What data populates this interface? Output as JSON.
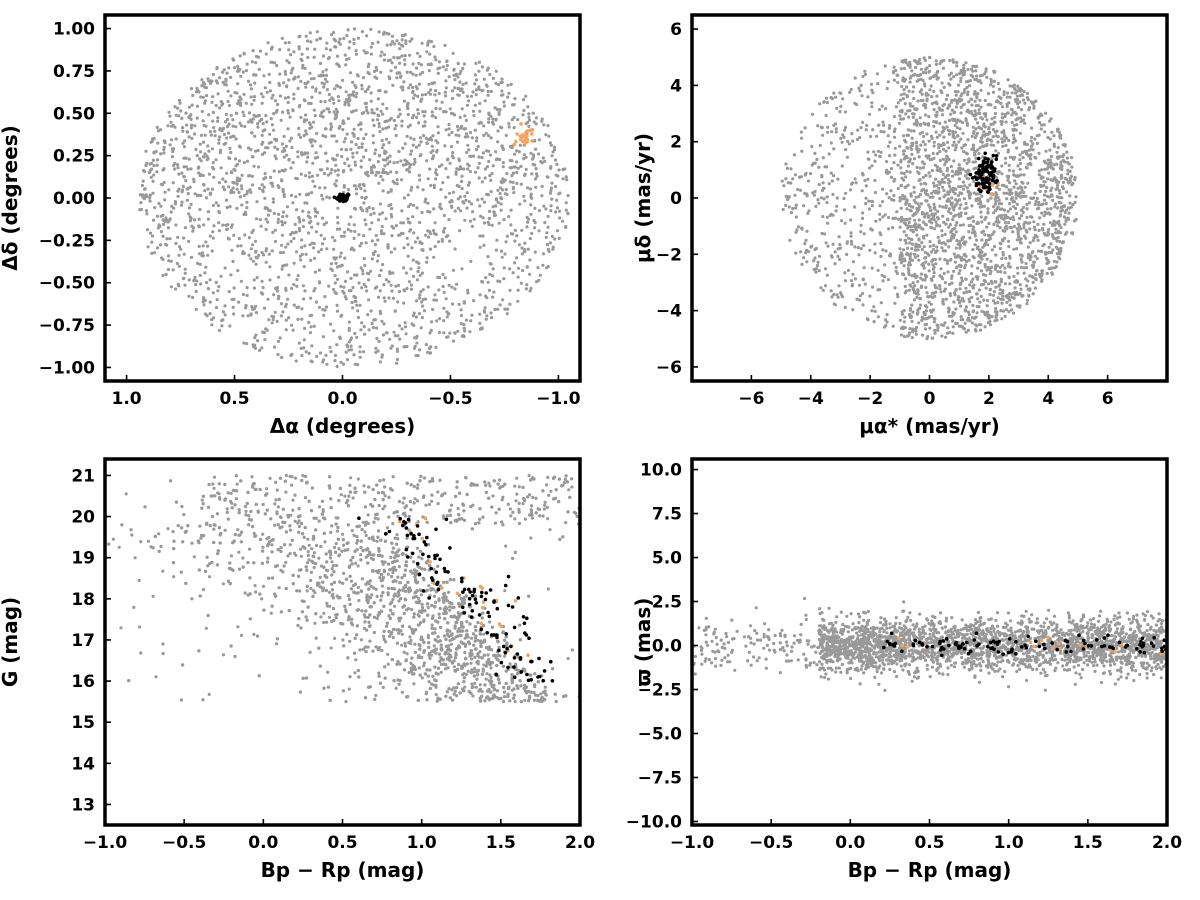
{
  "chart_data": [
    {
      "type": "scatter",
      "xlabel": "Δα (degrees)",
      "ylabel": "Δδ (degrees)",
      "xlim": [
        1.1,
        -1.1
      ],
      "ylim": [
        -1.08,
        1.08
      ],
      "x_inverted": true,
      "xticks": [
        1.0,
        0.5,
        0.0,
        -0.5,
        -1.0
      ],
      "xtick_labels": [
        "1.0",
        "0.5",
        "0.0",
        "−0.5",
        "−1.0"
      ],
      "yticks": [
        -1.0,
        -0.75,
        -0.5,
        -0.25,
        0.0,
        0.25,
        0.5,
        0.75,
        1.0
      ],
      "ytick_labels": [
        "−1.00",
        "−0.75",
        "−0.50",
        "−0.25",
        "0.00",
        "0.25",
        "0.50",
        "0.75",
        "1.00"
      ],
      "series": [
        {
          "color": "#999999",
          "description_shape": "disk",
          "cx": -0.05,
          "cy": 0.0,
          "rx": 1.0,
          "ry": 1.0,
          "density_bias": "upper",
          "approx_points": 2600
        },
        {
          "color": "#f4a460",
          "cx": -0.83,
          "cy": 0.36,
          "spread": 0.03,
          "approx_points": 25
        },
        {
          "color": "#000000",
          "cx": 0.0,
          "cy": 0.0,
          "spread": 0.015,
          "approx_points": 60
        }
      ]
    },
    {
      "type": "scatter",
      "xlabel": "μα* (mas/yr)",
      "ylabel": "μδ (mas/yr)",
      "xlim": [
        -8,
        8
      ],
      "ylim": [
        -6.5,
        6.5
      ],
      "xticks": [
        -6,
        -4,
        -2,
        0,
        2,
        4,
        6
      ],
      "xtick_labels": [
        "−6",
        "−4",
        "−2",
        "0",
        "2",
        "4",
        "6"
      ],
      "yticks": [
        -6,
        -4,
        -2,
        0,
        2,
        4,
        6
      ],
      "ytick_labels": [
        "−6",
        "−4",
        "−2",
        "0",
        "2",
        "4",
        "6"
      ],
      "series": [
        {
          "color": "#999999",
          "cx": 0.0,
          "cy": 0.0,
          "radius": 5.0,
          "density_bias": "right",
          "approx_points": 2600
        },
        {
          "color": "#f4a460",
          "cx": 1.9,
          "cy": 0.55,
          "spread": 0.2,
          "approx_points": 12
        },
        {
          "color": "#000000",
          "cx": 1.9,
          "cy": 0.85,
          "spread_x": 0.18,
          "spread_y": 0.3,
          "approx_points": 90
        }
      ]
    },
    {
      "type": "scatter",
      "xlabel": "Bp − Rp (mag)",
      "ylabel": "G (mag)",
      "xlim": [
        -1.0,
        2.0
      ],
      "ylim": [
        12.5,
        21.4
      ],
      "xticks": [
        -1.0,
        -0.5,
        0.0,
        0.5,
        1.0,
        1.5,
        2.0
      ],
      "xtick_labels": [
        "−1.0",
        "−0.5",
        "0.0",
        "0.5",
        "1.0",
        "1.5",
        "2.0"
      ],
      "yticks": [
        13,
        14,
        15,
        16,
        17,
        18,
        19,
        20,
        21
      ],
      "ytick_labels": [
        "13",
        "14",
        "15",
        "16",
        "17",
        "18",
        "19",
        "20",
        "21"
      ],
      "series": [
        {
          "color": "#999999",
          "description_shape": "color-magnitude field",
          "approx_points": 2600
        },
        {
          "color": "#f4a460",
          "approx_points": 25
        },
        {
          "color": "#000000",
          "approx_points": 120
        }
      ]
    },
    {
      "type": "scatter",
      "xlabel": "Bp − Rp (mag)",
      "ylabel": "ϖ (mas)",
      "xlim": [
        -1.0,
        2.0
      ],
      "ylim": [
        -10.2,
        10.6
      ],
      "xticks": [
        -1.0,
        -0.5,
        0.0,
        0.5,
        1.0,
        1.5,
        2.0
      ],
      "xtick_labels": [
        "−1.0",
        "−0.5",
        "0.0",
        "0.5",
        "1.0",
        "1.5",
        "2.0"
      ],
      "yticks": [
        -10.0,
        -7.5,
        -5.0,
        -2.5,
        0.0,
        2.5,
        5.0,
        7.5,
        10.0
      ],
      "ytick_labels": [
        "−10.0",
        "−7.5",
        "−5.0",
        "−2.5",
        "0.0",
        "2.5",
        "5.0",
        "7.5",
        "10.0"
      ],
      "series": [
        {
          "color": "#999999",
          "description_shape": "horizontal band around 0",
          "approx_points": 2600
        },
        {
          "color": "#f4a460",
          "approx_points": 20
        },
        {
          "color": "#000000",
          "approx_points": 110
        }
      ]
    }
  ]
}
